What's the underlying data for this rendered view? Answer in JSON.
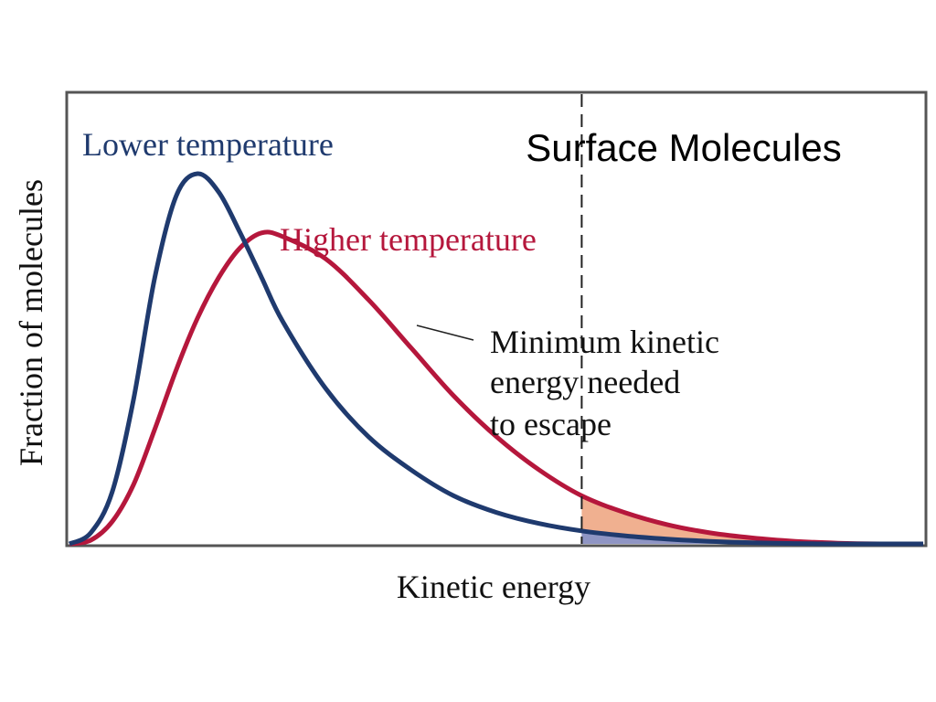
{
  "title": "Surface Molecules",
  "chart_data": {
    "type": "line",
    "title": "Surface Molecules",
    "xlabel": "Kinetic energy",
    "ylabel": "Fraction of molecules",
    "xlim": [
      0,
      10
    ],
    "ylim": [
      0,
      1
    ],
    "grid": false,
    "series": [
      {
        "name": "Lower temperature",
        "color": "#1f3a6e",
        "fill_color": "#8f95c4",
        "x": [
          0,
          0.25,
          0.5,
          0.75,
          1.0,
          1.25,
          1.5,
          1.75,
          2.0,
          2.25,
          2.5,
          3.0,
          3.5,
          4.0,
          4.5,
          5.0,
          5.5,
          6.0,
          6.5,
          7.0,
          7.5,
          8.0,
          8.5,
          9.0,
          9.5,
          10.0
        ],
        "y": [
          0,
          0.03,
          0.14,
          0.39,
          0.72,
          0.94,
          1.0,
          0.95,
          0.84,
          0.72,
          0.6,
          0.42,
          0.29,
          0.2,
          0.13,
          0.085,
          0.055,
          0.035,
          0.022,
          0.013,
          0.007,
          0.003,
          0.001,
          0,
          0,
          0
        ]
      },
      {
        "name": "Higher temperature",
        "color": "#b5173c",
        "fill_color": "#f0b090",
        "x": [
          0,
          0.25,
          0.5,
          0.75,
          1.0,
          1.25,
          1.5,
          1.75,
          2.0,
          2.25,
          2.5,
          3.0,
          3.5,
          4.0,
          4.5,
          5.0,
          5.5,
          6.0,
          6.5,
          7.0,
          7.5,
          8.0,
          8.5,
          9.0,
          9.5,
          10.0
        ],
        "y": [
          0,
          0.01,
          0.06,
          0.16,
          0.31,
          0.47,
          0.61,
          0.72,
          0.8,
          0.84,
          0.83,
          0.77,
          0.66,
          0.53,
          0.4,
          0.29,
          0.2,
          0.13,
          0.085,
          0.052,
          0.03,
          0.016,
          0.007,
          0.002,
          0,
          0
        ]
      }
    ],
    "threshold": {
      "x": 6.0,
      "label": [
        "Minimum kinetic",
        "energy needed",
        "to escape"
      ]
    }
  }
}
